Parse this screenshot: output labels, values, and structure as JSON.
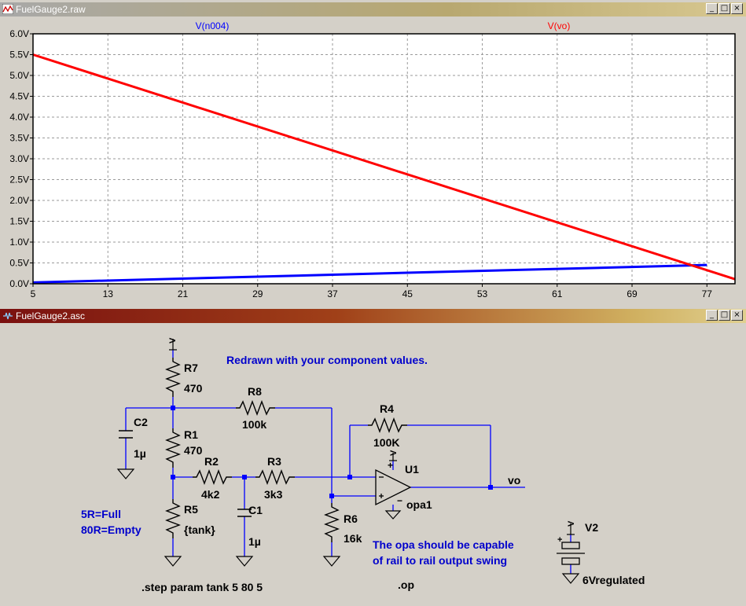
{
  "plot_window": {
    "title": "FuelGauge2.raw",
    "minimize": "_",
    "maximize": "□",
    "close": "×"
  },
  "schematic_window": {
    "title": "FuelGauge2.asc",
    "minimize": "_",
    "maximize": "□",
    "close": "×"
  },
  "chart_data": {
    "type": "line",
    "series": [
      {
        "name": "V(n004)",
        "color": "#0000ff",
        "x": [
          5,
          77
        ],
        "y": [
          0.03,
          0.45
        ]
      },
      {
        "name": "V(vo)",
        "color": "#ff0000",
        "x": [
          5,
          80
        ],
        "y": [
          5.5,
          0.11
        ]
      }
    ],
    "xticks": [
      "5",
      "13",
      "21",
      "29",
      "37",
      "45",
      "53",
      "61",
      "69",
      "77"
    ],
    "yticks": [
      "0.0V",
      "0.5V",
      "1.0V",
      "1.5V",
      "2.0V",
      "2.5V",
      "3.0V",
      "3.5V",
      "4.0V",
      "4.5V",
      "5.0V",
      "5.5V",
      "6.0V"
    ],
    "xlim": [
      5,
      80
    ],
    "ylim": [
      0,
      6
    ],
    "grid": true,
    "legend": "top"
  },
  "schematic": {
    "note_redrawn": "Redrawn with your component values.",
    "note_full": "5R=Full",
    "note_empty": "80R=Empty",
    "note_opa_line1": "The opa should be capable",
    "note_opa_line2": "of rail to rail output swing",
    "step_directive": ".step param tank 5 80 5",
    "op_directive": ".op",
    "components": {
      "R7": {
        "name": "R7",
        "value": "470"
      },
      "R8": {
        "name": "R8",
        "value": "100k"
      },
      "R4": {
        "name": "R4",
        "value": "100K"
      },
      "C2": {
        "name": "C2",
        "value": "1µ"
      },
      "R1": {
        "name": "R1",
        "value": "470"
      },
      "R2": {
        "name": "R2",
        "value": "4k2"
      },
      "R3": {
        "name": "R3",
        "value": "3k3"
      },
      "R5": {
        "name": "R5",
        "value": "{tank}"
      },
      "C1": {
        "name": "C1",
        "value": "1µ"
      },
      "R6": {
        "name": "R6",
        "value": "16k"
      },
      "U1": {
        "name": "U1",
        "value": "opa1"
      },
      "V2": {
        "name": "V2",
        "value": "6Vregulated"
      }
    },
    "net_vo": "vo",
    "supply_v": "V",
    "plus": "+",
    "minus": "−"
  }
}
